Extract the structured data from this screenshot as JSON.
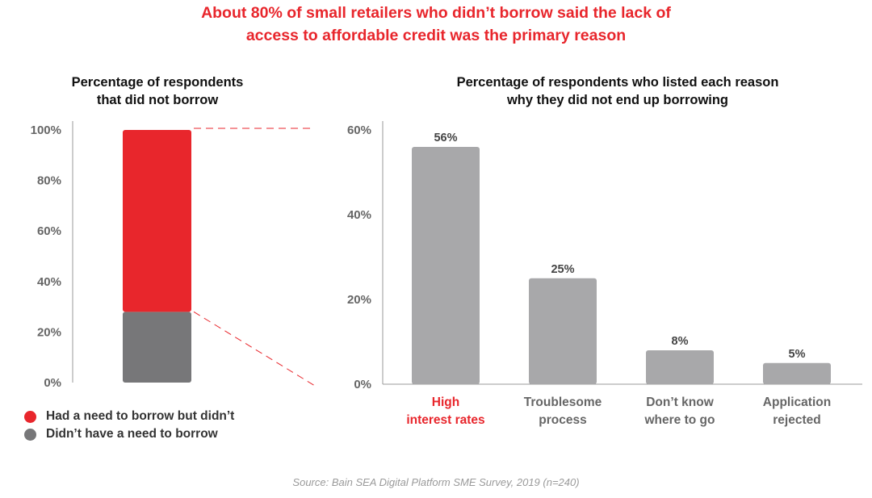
{
  "headline_lines": [
    "About 80% of small retailers who didn’t borrow said the lack of",
    "access to affordable credit was the primary reason"
  ],
  "source": "Source: Bain SEA Digital Platform SME Survey, 2019 (n=240)",
  "colors": {
    "red": "#e8262c",
    "dark_gray": "#777779",
    "light_gray": "#a8a8aa",
    "axis_text": "#666666"
  },
  "legend": [
    {
      "label": "Had a need to borrow but didn’t",
      "color": "#e8262c"
    },
    {
      "label": "Didn’t have a need to borrow",
      "color": "#777779"
    }
  ],
  "chart_data": [
    {
      "type": "bar",
      "stacked": true,
      "title_lines": [
        "Percentage of respondents",
        "that did not borrow"
      ],
      "categories": [
        ""
      ],
      "series": [
        {
          "name": "Didn’t have a need to borrow",
          "values": [
            28
          ],
          "color": "#777779"
        },
        {
          "name": "Had a need to borrow but didn’t",
          "values": [
            72
          ],
          "color": "#e8262c"
        }
      ],
      "ylim": [
        0,
        100
      ],
      "yticks": [
        "0%",
        "20%",
        "40%",
        "60%",
        "80%",
        "100%"
      ],
      "legend_position": "bottom-left",
      "grid": false
    },
    {
      "type": "bar",
      "title_lines": [
        "Percentage of respondents who listed each reason",
        "why they did not end up borrowing"
      ],
      "categories": [
        {
          "lines": [
            "High",
            "interest rates"
          ],
          "highlight": true
        },
        {
          "lines": [
            "Troublesome",
            "process"
          ],
          "highlight": false
        },
        {
          "lines": [
            "Don’t know",
            "where to go"
          ],
          "highlight": false
        },
        {
          "lines": [
            "Application",
            "rejected"
          ],
          "highlight": false
        }
      ],
      "values": [
        56,
        25,
        8,
        5
      ],
      "data_labels": [
        "56%",
        "25%",
        "8%",
        "5%"
      ],
      "ylim": [
        0,
        60
      ],
      "yticks": [
        "0%",
        "20%",
        "40%",
        "60%"
      ],
      "grid": false
    }
  ]
}
